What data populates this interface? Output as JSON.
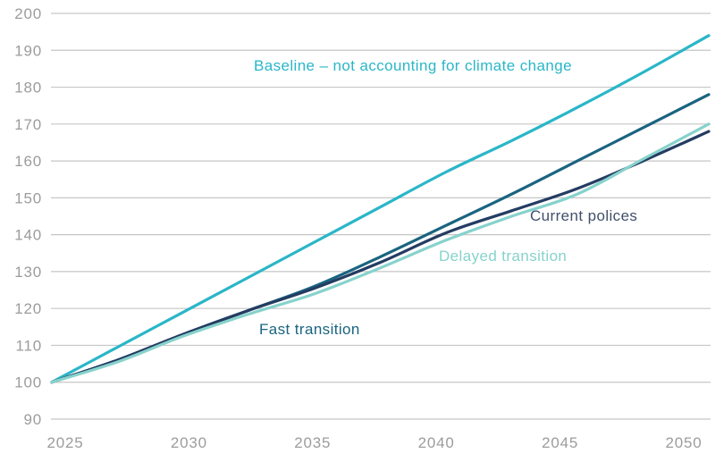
{
  "chart_data": {
    "type": "line",
    "title": "",
    "xlabel": "",
    "ylabel": "",
    "x": [
      2025,
      2027.5,
      2030,
      2032.5,
      2035,
      2037.5,
      2040,
      2042.5,
      2045,
      2047.5,
      2050
    ],
    "series": [
      {
        "name": "baseline",
        "label": "Baseline – not accounting for climate change",
        "color": "#2ab6c8",
        "values": [
          100,
          109.5,
          119,
          128.5,
          138,
          147.5,
          157,
          165.5,
          174.5,
          184,
          194
        ]
      },
      {
        "name": "fast-transition",
        "label": "Fast transition",
        "color": "#1a6480",
        "values": [
          100,
          106,
          113,
          119.5,
          126,
          134,
          142.5,
          151,
          160,
          169,
          178
        ]
      },
      {
        "name": "current-policies",
        "label": "Current polices",
        "color": "#243c62",
        "label_color": "#41506b",
        "values": [
          100,
          106,
          113,
          119.5,
          125.5,
          132.5,
          140.5,
          146.5,
          152.5,
          160,
          168
        ]
      },
      {
        "name": "delayed-transition",
        "label": "Delayed transition",
        "color": "#87d2cc",
        "values": [
          100,
          105.5,
          112.5,
          118.5,
          124,
          131,
          138.5,
          145,
          151,
          160.5,
          170
        ]
      }
    ],
    "xlim": [
      2025,
      2050
    ],
    "ylim": [
      90,
      200
    ],
    "y_ticks": [
      200,
      190,
      180,
      170,
      160,
      150,
      140,
      130,
      120,
      110,
      100,
      90
    ],
    "x_ticks": [
      "2025",
      "2030",
      "2035",
      "2040",
      "2045",
      "2050"
    ],
    "grid": "horizontal",
    "legend_position": "inline-annotations",
    "grid_color": "#c6c6c6",
    "tick_color": "#9c9c9c",
    "background_color": "#ffffff"
  }
}
